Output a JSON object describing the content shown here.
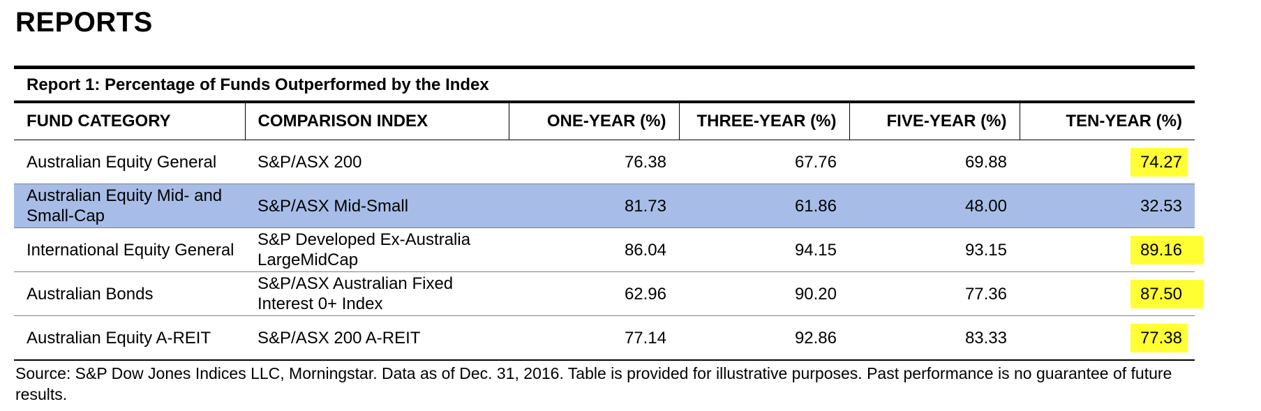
{
  "page": {
    "heading": "REPORTS"
  },
  "report": {
    "caption": "Report 1: Percentage of Funds Outperformed by the Index",
    "columns": [
      "FUND CATEGORY",
      "COMPARISON INDEX",
      "ONE-YEAR (%)",
      "THREE-YEAR (%)",
      "FIVE-YEAR (%)",
      "TEN-YEAR (%)"
    ],
    "rows": [
      {
        "category": "Australian Equity General",
        "index": "S&P/ASX 200",
        "one_year": "76.38",
        "three_year": "67.76",
        "five_year": "69.88",
        "ten_year": "74.27",
        "ten_year_highlighted": true,
        "row_selected": false
      },
      {
        "category": "Australian Equity Mid- and Small-Cap",
        "index": "S&P/ASX Mid-Small",
        "one_year": "81.73",
        "three_year": "61.86",
        "five_year": "48.00",
        "ten_year": "32.53",
        "ten_year_highlighted": false,
        "row_selected": true
      },
      {
        "category": "International Equity General",
        "index": "S&P Developed Ex-Australia LargeMidCap",
        "one_year": "86.04",
        "three_year": "94.15",
        "five_year": "93.15",
        "ten_year": "89.16",
        "ten_year_highlighted": true,
        "row_selected": false
      },
      {
        "category": "Australian Bonds",
        "index": "S&P/ASX Australian Fixed Interest 0+ Index",
        "one_year": "62.96",
        "three_year": "90.20",
        "five_year": "77.36",
        "ten_year": "87.50",
        "ten_year_highlighted": true,
        "row_selected": false
      },
      {
        "category": "Australian Equity A-REIT",
        "index": "S&P/ASX 200 A-REIT",
        "one_year": "77.14",
        "three_year": "92.86",
        "five_year": "83.33",
        "ten_year": "77.38",
        "ten_year_highlighted": true,
        "row_selected": false
      }
    ],
    "source": "Source: S&P Dow Jones Indices LLC, Morningstar.  Data as of Dec. 31, 2016.  Table is provided for illustrative purposes.  Past performance is no guarantee of future results."
  },
  "colors": {
    "highlight": "#ffff33",
    "selected_row": "#a7bde8"
  }
}
